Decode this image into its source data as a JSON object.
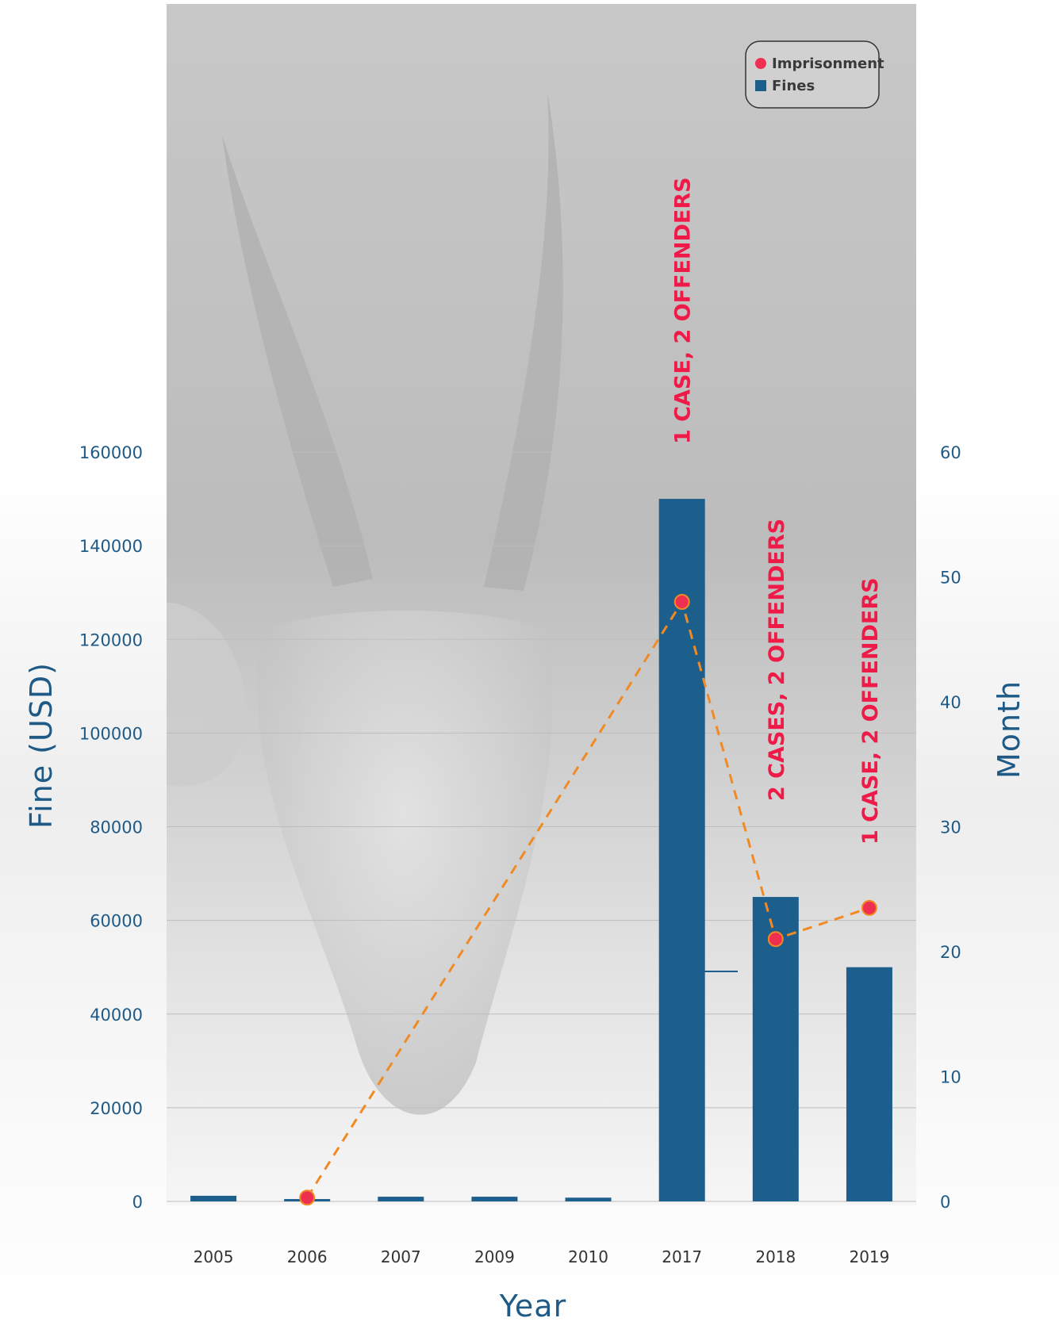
{
  "colors": {
    "fines": "#1c5e8c",
    "imprisonment_line": "#f08a24",
    "imprisonment_marker": "#ef2f4f",
    "annotation": "#ef1a47",
    "axis_text": "#1f5a86",
    "gridline": "#bdbdbd"
  },
  "chart_data": {
    "type": "bar",
    "categories": [
      "2005",
      "2006",
      "2007",
      "2009",
      "2010",
      "2017",
      "2018",
      "2019"
    ],
    "xlabel": "Year",
    "ylabel": "Fine (USD)",
    "y2label": "Month",
    "ylim": [
      0,
      160000
    ],
    "y2lim": [
      0,
      60
    ],
    "yticks": [
      "0",
      "20000",
      "40000",
      "60000",
      "80000",
      "100000",
      "120000",
      "140000",
      "160000"
    ],
    "y2ticks": [
      "0",
      "10",
      "20",
      "30",
      "40",
      "50",
      "60"
    ],
    "grid": true,
    "legend_position": "top-right",
    "series": [
      {
        "name": "Fines",
        "type": "bar",
        "axis": "left",
        "values": [
          1200,
          500,
          1000,
          1000,
          800,
          150000,
          65000,
          50000
        ]
      },
      {
        "name": "Imprisonment",
        "type": "line",
        "style": "dashed",
        "axis": "right",
        "points": [
          {
            "x": "2006",
            "y": 0.3
          },
          {
            "x": "2017",
            "y": 48
          },
          {
            "x": "2018",
            "y": 21
          },
          {
            "x": "2019",
            "y": 23.5
          }
        ]
      }
    ],
    "annotations": [
      {
        "x": "2017",
        "text": "1 CASE, 2 OFFENDERS"
      },
      {
        "x": "2018",
        "text": "2 CASES, 2 OFFENDERS"
      },
      {
        "x": "2019",
        "text": "1 CASE, 2 OFFENDERS"
      }
    ]
  }
}
